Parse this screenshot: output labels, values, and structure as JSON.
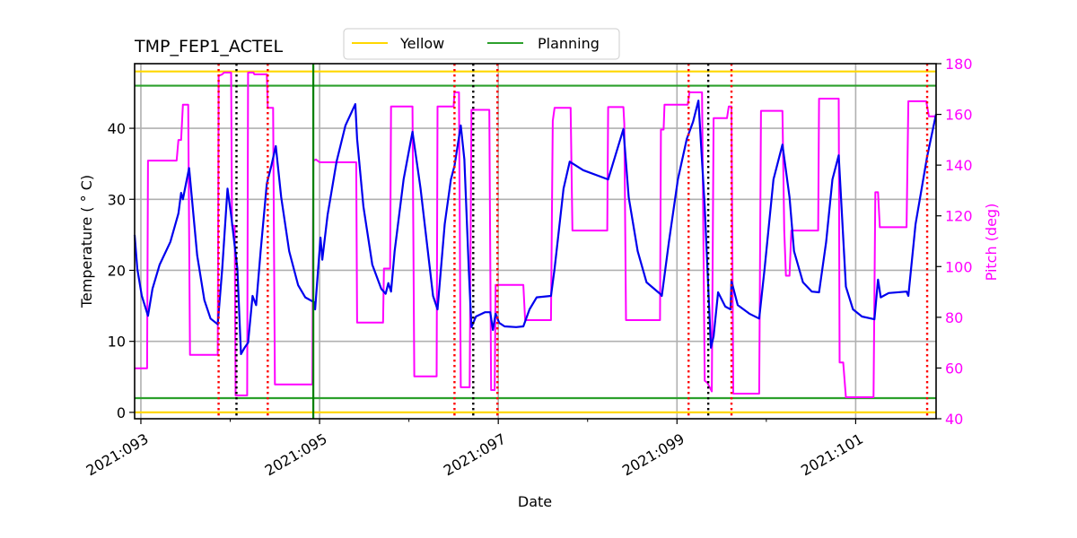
{
  "chart_data": {
    "type": "line",
    "title": "TMP_FEP1_ACTEL",
    "xlabel": "Date",
    "ylabel": "Temperature ($^\\circ$C)",
    "ylabel_display": "Temperature ( ° C)",
    "y2label": "Pitch (deg)",
    "xlim": [
      92.93,
      101.9
    ],
    "ylim": [
      -0.9,
      49.1
    ],
    "y2lim": [
      40,
      180
    ],
    "grid": true,
    "legend_position": "upper center, outside top",
    "x_ticks": [
      {
        "value": 93,
        "label": "2021:093"
      },
      {
        "value": 95,
        "label": "2021:095"
      },
      {
        "value": 97,
        "label": "2021:097"
      },
      {
        "value": 99,
        "label": "2021:099"
      },
      {
        "value": 101,
        "label": "2021:101"
      }
    ],
    "x_minor_ticks": [
      94,
      96,
      98,
      100
    ],
    "y_ticks": [
      0,
      10,
      20,
      30,
      40
    ],
    "y2_ticks": [
      40,
      60,
      80,
      100,
      120,
      140,
      160,
      180
    ],
    "legend": [
      {
        "label": "Yellow",
        "color": "#ffd700"
      },
      {
        "label": "Planning",
        "color": "#2ca02c"
      }
    ],
    "limits": [
      {
        "name": "Yellow high",
        "value": 48,
        "color": "#ffd700"
      },
      {
        "name": "Yellow low",
        "value": 0,
        "color": "#ffd700"
      },
      {
        "name": "Planning high",
        "value": 46,
        "color": "#2ca02c"
      },
      {
        "name": "Planning low",
        "value": 2,
        "color": "#2ca02c"
      }
    ],
    "vertical_markers": [
      {
        "x": 93.87,
        "style": "red-dotted",
        "color": "#ff0000"
      },
      {
        "x": 94.07,
        "style": "black-dotted",
        "color": "#000000"
      },
      {
        "x": 94.42,
        "style": "red-dotted",
        "color": "#ff0000"
      },
      {
        "x": 94.93,
        "style": "green-solid",
        "color": "#008000"
      },
      {
        "x": 96.51,
        "style": "red-dotted",
        "color": "#ff0000"
      },
      {
        "x": 96.72,
        "style": "black-dotted",
        "color": "#000000"
      },
      {
        "x": 96.99,
        "style": "red-dotted",
        "color": "#ff0000"
      },
      {
        "x": 99.13,
        "style": "red-dotted",
        "color": "#ff0000"
      },
      {
        "x": 99.35,
        "style": "black-dotted",
        "color": "#000000"
      },
      {
        "x": 99.61,
        "style": "red-dotted",
        "color": "#ff0000"
      },
      {
        "x": 101.8,
        "style": "red-dotted",
        "color": "#ff0000"
      }
    ],
    "series": [
      {
        "name": "TMP_FEP1_ACTEL",
        "axis": "left",
        "color": "#0000ee",
        "x": [
          92.93,
          92.96,
          93.01,
          93.08,
          93.13,
          93.21,
          93.33,
          93.42,
          93.45,
          93.47,
          93.49,
          93.54,
          93.63,
          93.71,
          93.78,
          93.86,
          93.91,
          93.97,
          94.01,
          94.08,
          94.12,
          94.16,
          94.2,
          94.25,
          94.29,
          94.34,
          94.41,
          94.46,
          94.51,
          94.57,
          94.66,
          94.76,
          94.84,
          94.94,
          94.95,
          95.01,
          95.03,
          95.09,
          95.19,
          95.29,
          95.4,
          95.42,
          95.49,
          95.59,
          95.69,
          95.74,
          95.77,
          95.8,
          95.84,
          95.94,
          96.04,
          96.13,
          96.2,
          96.27,
          96.32,
          96.4,
          96.47,
          96.51,
          96.58,
          96.62,
          96.67,
          96.7,
          96.75,
          96.85,
          96.91,
          96.94,
          96.97,
          97.01,
          97.07,
          97.2,
          97.28,
          97.35,
          97.43,
          97.59,
          97.63,
          97.73,
          97.8,
          97.95,
          98.23,
          98.4,
          98.46,
          98.56,
          98.66,
          98.81,
          98.83,
          98.91,
          99.01,
          99.11,
          99.18,
          99.24,
          99.31,
          99.38,
          99.41,
          99.46,
          99.54,
          99.6,
          99.61,
          99.68,
          99.81,
          99.92,
          99.98,
          100.08,
          100.18,
          100.26,
          100.31,
          100.41,
          100.51,
          100.59,
          100.67,
          100.74,
          100.81,
          100.89,
          100.97,
          101.07,
          101.21,
          101.25,
          101.28,
          101.37,
          101.57,
          101.59,
          101.67,
          101.8,
          101.9
        ],
        "y": [
          25.0,
          20.2,
          16.4,
          13.6,
          17.4,
          20.8,
          24.0,
          28.0,
          30.9,
          30.0,
          31.3,
          34.4,
          22.1,
          15.8,
          13.2,
          12.4,
          20.2,
          31.5,
          27.8,
          20.2,
          8.2,
          9.1,
          9.8,
          16.4,
          15.1,
          22.7,
          32.2,
          34.7,
          37.5,
          30.3,
          22.7,
          17.9,
          16.2,
          15.5,
          14.5,
          24.6,
          21.5,
          27.8,
          35.3,
          40.4,
          43.4,
          38.5,
          29.0,
          20.8,
          17.4,
          16.7,
          18.2,
          17.0,
          22.7,
          32.8,
          39.5,
          31.5,
          24.0,
          16.4,
          14.5,
          26.5,
          32.8,
          34.7,
          40.4,
          35.6,
          20.2,
          12.0,
          13.5,
          14.1,
          14.1,
          11.6,
          13.9,
          12.6,
          12.1,
          12.0,
          12.1,
          14.5,
          16.2,
          16.4,
          20.2,
          31.5,
          35.3,
          34.1,
          32.8,
          39.9,
          30.3,
          22.7,
          18.3,
          16.7,
          16.4,
          24.0,
          32.8,
          38.5,
          40.9,
          43.9,
          29.0,
          9.1,
          10.7,
          16.9,
          14.9,
          14.5,
          18.5,
          15.1,
          13.9,
          13.2,
          20.2,
          32.8,
          37.7,
          30.3,
          22.7,
          18.3,
          17.0,
          16.9,
          24.0,
          32.8,
          36.2,
          17.7,
          14.5,
          13.5,
          13.1,
          18.7,
          16.2,
          16.8,
          17.0,
          16.4,
          26.5,
          36.0,
          42.0
        ]
      },
      {
        "name": "Pitch",
        "axis": "right",
        "color": "#ff00ff",
        "x": [
          92.93,
          93.07,
          93.08,
          93.4,
          93.42,
          93.45,
          93.47,
          93.53,
          93.55,
          93.86,
          93.87,
          93.91,
          93.93,
          94.01,
          94.02,
          94.05,
          94.06,
          94.19,
          94.2,
          94.26,
          94.27,
          94.41,
          94.42,
          94.48,
          94.5,
          94.92,
          94.93,
          94.96,
          95.0,
          95.41,
          95.42,
          95.71,
          95.72,
          95.79,
          95.8,
          96.04,
          96.06,
          96.31,
          96.32,
          96.5,
          96.51,
          96.56,
          96.58,
          96.68,
          96.7,
          96.9,
          96.92,
          96.96,
          96.97,
          97.28,
          97.3,
          97.59,
          97.61,
          97.63,
          97.65,
          97.81,
          97.83,
          98.22,
          98.23,
          98.4,
          98.41,
          98.43,
          98.81,
          98.82,
          98.85,
          98.86,
          99.12,
          99.14,
          99.28,
          99.31,
          99.34,
          99.39,
          99.41,
          99.56,
          99.58,
          99.61,
          99.63,
          99.92,
          99.94,
          100.18,
          100.2,
          100.22,
          100.26,
          100.28,
          100.58,
          100.59,
          100.81,
          100.82,
          100.86,
          100.89,
          101.2,
          101.22,
          101.25,
          101.27,
          101.57,
          101.59,
          101.79,
          101.82,
          101.9
        ],
        "y": [
          59.9,
          59.9,
          141.8,
          141.8,
          149.9,
          149.9,
          163.8,
          163.8,
          65.2,
          65.2,
          175.2,
          175.8,
          176.5,
          176.5,
          116.1,
          116.1,
          49.2,
          49.2,
          176.5,
          176.5,
          175.8,
          175.8,
          162.6,
          162.6,
          53.5,
          53.5,
          141.8,
          142.2,
          141.1,
          141.1,
          77.9,
          77.9,
          99.2,
          99.2,
          163.1,
          163.1,
          56.7,
          56.7,
          163.1,
          163.1,
          168.7,
          168.7,
          52.4,
          52.4,
          161.8,
          161.8,
          51.3,
          51.3,
          92.8,
          92.8,
          78.9,
          78.9,
          157.4,
          162.6,
          162.6,
          162.6,
          114.2,
          114.2,
          162.9,
          162.9,
          156.2,
          78.9,
          78.9,
          154.0,
          154.0,
          163.8,
          163.8,
          168.7,
          168.7,
          55.0,
          54.2,
          50.8,
          158.5,
          158.5,
          163.1,
          163.1,
          49.9,
          49.9,
          161.4,
          161.4,
          114.2,
          96.4,
          96.4,
          114.2,
          114.2,
          166.2,
          166.2,
          62.2,
          62.2,
          48.5,
          48.5,
          129.3,
          129.3,
          115.5,
          115.5,
          165.2,
          165.2,
          159.2,
          159.2
        ]
      }
    ]
  }
}
